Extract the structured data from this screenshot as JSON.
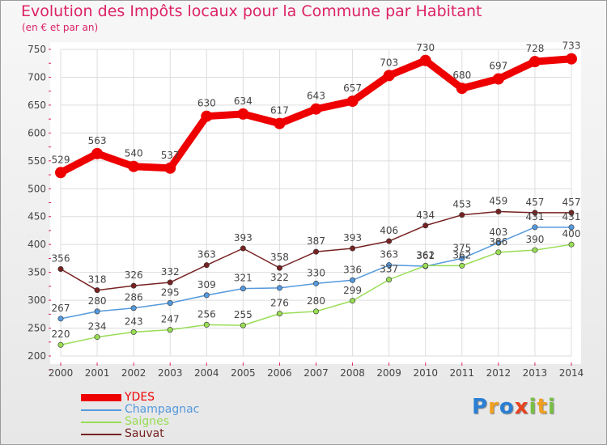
{
  "chart_data": {
    "type": "line",
    "title": "Evolution des Impôts locaux pour la Commune par Habitant",
    "subtitle": "(en € et par an)",
    "xlabel": "",
    "ylabel": "",
    "categories": [
      "2000",
      "2001",
      "2002",
      "2003",
      "2004",
      "2005",
      "2006",
      "2007",
      "2008",
      "2009",
      "2010",
      "2011",
      "2012",
      "2013",
      "2014"
    ],
    "ylim": [
      200,
      750
    ],
    "yticks": [
      200,
      250,
      300,
      350,
      400,
      450,
      500,
      550,
      600,
      650,
      700,
      750
    ],
    "grid": true,
    "legend_position": "bottom-left",
    "series": [
      {
        "name": "YDES",
        "color": "#ee0000",
        "emphasis": true,
        "values": [
          529,
          563,
          540,
          537,
          630,
          634,
          617,
          643,
          657,
          703,
          730,
          680,
          697,
          728,
          733
        ]
      },
      {
        "name": "Champagnac",
        "color": "#5599dd",
        "emphasis": false,
        "values": [
          267,
          280,
          286,
          295,
          309,
          321,
          322,
          330,
          336,
          363,
          361,
          375,
          403,
          431,
          431
        ]
      },
      {
        "name": "Saignes",
        "color": "#99dd55",
        "emphasis": false,
        "values": [
          220,
          234,
          243,
          247,
          256,
          255,
          276,
          280,
          299,
          337,
          362,
          362,
          386,
          390,
          400
        ]
      },
      {
        "name": "Sauvat",
        "color": "#772222",
        "emphasis": false,
        "values": [
          356,
          318,
          326,
          332,
          363,
          393,
          358,
          387,
          393,
          406,
          434,
          453,
          459,
          457,
          457
        ]
      }
    ]
  },
  "logo": {
    "letters": [
      "P",
      "r",
      "o",
      "x",
      "i",
      "t",
      "i"
    ],
    "colors": [
      "#2a7fd4",
      "#f0a020",
      "#2a7fd4",
      "#e8421f",
      "#77c043",
      "#f0a020",
      "#77c043"
    ]
  }
}
